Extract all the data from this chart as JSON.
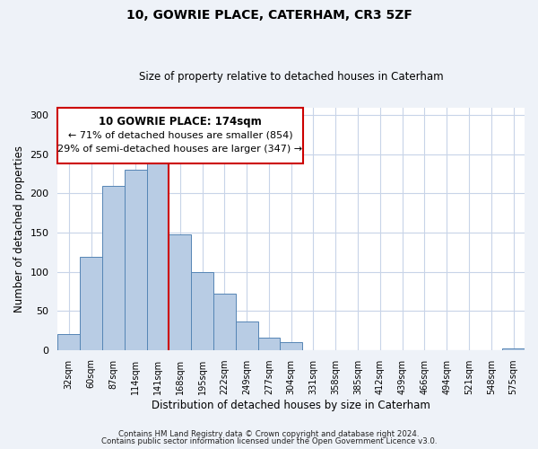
{
  "title": "10, GOWRIE PLACE, CATERHAM, CR3 5ZF",
  "subtitle": "Size of property relative to detached houses in Caterham",
  "xlabel": "Distribution of detached houses by size in Caterham",
  "ylabel": "Number of detached properties",
  "bar_labels": [
    "32sqm",
    "60sqm",
    "87sqm",
    "114sqm",
    "141sqm",
    "168sqm",
    "195sqm",
    "222sqm",
    "249sqm",
    "277sqm",
    "304sqm",
    "331sqm",
    "358sqm",
    "385sqm",
    "412sqm",
    "439sqm",
    "466sqm",
    "494sqm",
    "521sqm",
    "548sqm",
    "575sqm"
  ],
  "bar_values": [
    20,
    119,
    210,
    230,
    250,
    148,
    100,
    72,
    36,
    16,
    10,
    0,
    0,
    0,
    0,
    0,
    0,
    0,
    0,
    0,
    2
  ],
  "bar_color": "#b8cce4",
  "bar_edgecolor": "#5585b5",
  "vline_color": "#cc0000",
  "vline_index": 4.5,
  "annotation_text_line1": "10 GOWRIE PLACE: 174sqm",
  "annotation_text_line2": "← 71% of detached houses are smaller (854)",
  "annotation_text_line3": "29% of semi-detached houses are larger (347) →",
  "box_edgecolor": "#cc0000",
  "ylim": [
    0,
    310
  ],
  "yticks": [
    0,
    50,
    100,
    150,
    200,
    250,
    300
  ],
  "footer1": "Contains HM Land Registry data © Crown copyright and database right 2024.",
  "footer2": "Contains public sector information licensed under the Open Government Licence v3.0.",
  "background_color": "#eef2f8",
  "plot_background": "#ffffff",
  "grid_color": "#c8d4e8",
  "title_fontsize": 10,
  "subtitle_fontsize": 8.5
}
